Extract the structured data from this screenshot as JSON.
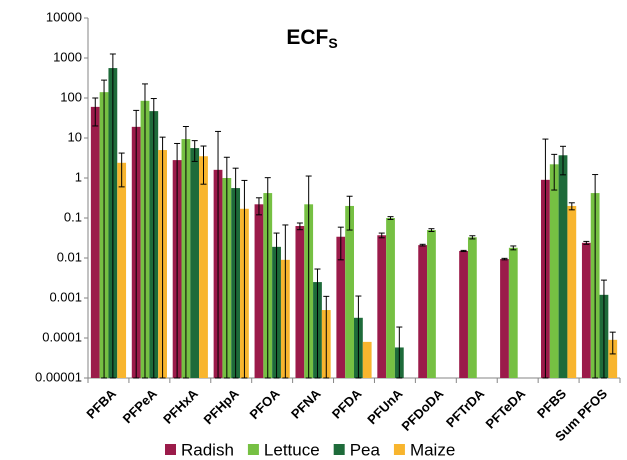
{
  "chart_data": {
    "type": "bar",
    "title": "ECF",
    "title_subscript": "S",
    "log_scale": true,
    "grid": false,
    "legend": "bottom",
    "categories": [
      "PFBA",
      "PFPeA",
      "PFHxA",
      "PFHpA",
      "PFOA",
      "PFNA",
      "PFDA",
      "PFUnA",
      "PFDoDA",
      "PFTrDA",
      "PFTeDA",
      "PFBS",
      "Sum PFOS"
    ],
    "series": [
      {
        "name": "Radish",
        "color": "#9b1b4a",
        "values": [
          60,
          19,
          2.8,
          1.6,
          0.22,
          0.063,
          0.034,
          0.037,
          0.021,
          0.015,
          0.0094,
          0.9,
          0.024
        ],
        "errors": [
          40,
          30,
          4.5,
          13,
          0.1,
          0.012,
          0.025,
          0.005,
          0.001,
          0.0005,
          0.0004,
          8.5,
          0.002
        ]
      },
      {
        "name": "Lettuce",
        "color": "#76c043",
        "values": [
          140,
          85,
          9.4,
          1.0,
          0.42,
          0.22,
          0.2,
          0.1,
          0.05,
          0.033,
          0.018,
          2.2,
          0.42
        ],
        "errors": [
          140,
          140,
          10,
          2.3,
          0.6,
          0.9,
          0.15,
          0.008,
          0.004,
          0.003,
          0.002,
          1.7,
          0.8
        ]
      },
      {
        "name": "Pea",
        "color": "#1e6b3a",
        "values": [
          560,
          47,
          5.6,
          0.56,
          0.019,
          0.0025,
          0.00032,
          5.8e-05,
          null,
          null,
          null,
          3.7,
          0.0012
        ],
        "errors": [
          700,
          50,
          3,
          1.2,
          0.023,
          0.0028,
          0.0008,
          0.00013,
          null,
          null,
          null,
          2.5,
          0.0016
        ]
      },
      {
        "name": "Maize",
        "color": "#f8b52e",
        "values": [
          2.4,
          5,
          3.5,
          0.17,
          0.009,
          0.0005,
          8e-05,
          null,
          null,
          null,
          null,
          0.2,
          9e-05
        ],
        "errors": [
          1.8,
          5.5,
          2.8,
          0.7,
          0.058,
          0.0006,
          null,
          null,
          null,
          null,
          null,
          0.04,
          5e-05
        ]
      }
    ],
    "ylim": [
      1e-05,
      10000
    ],
    "yticks": [
      10000,
      1000,
      100,
      10,
      1,
      0.1,
      0.01,
      0.001,
      0.0001,
      1e-05
    ]
  }
}
